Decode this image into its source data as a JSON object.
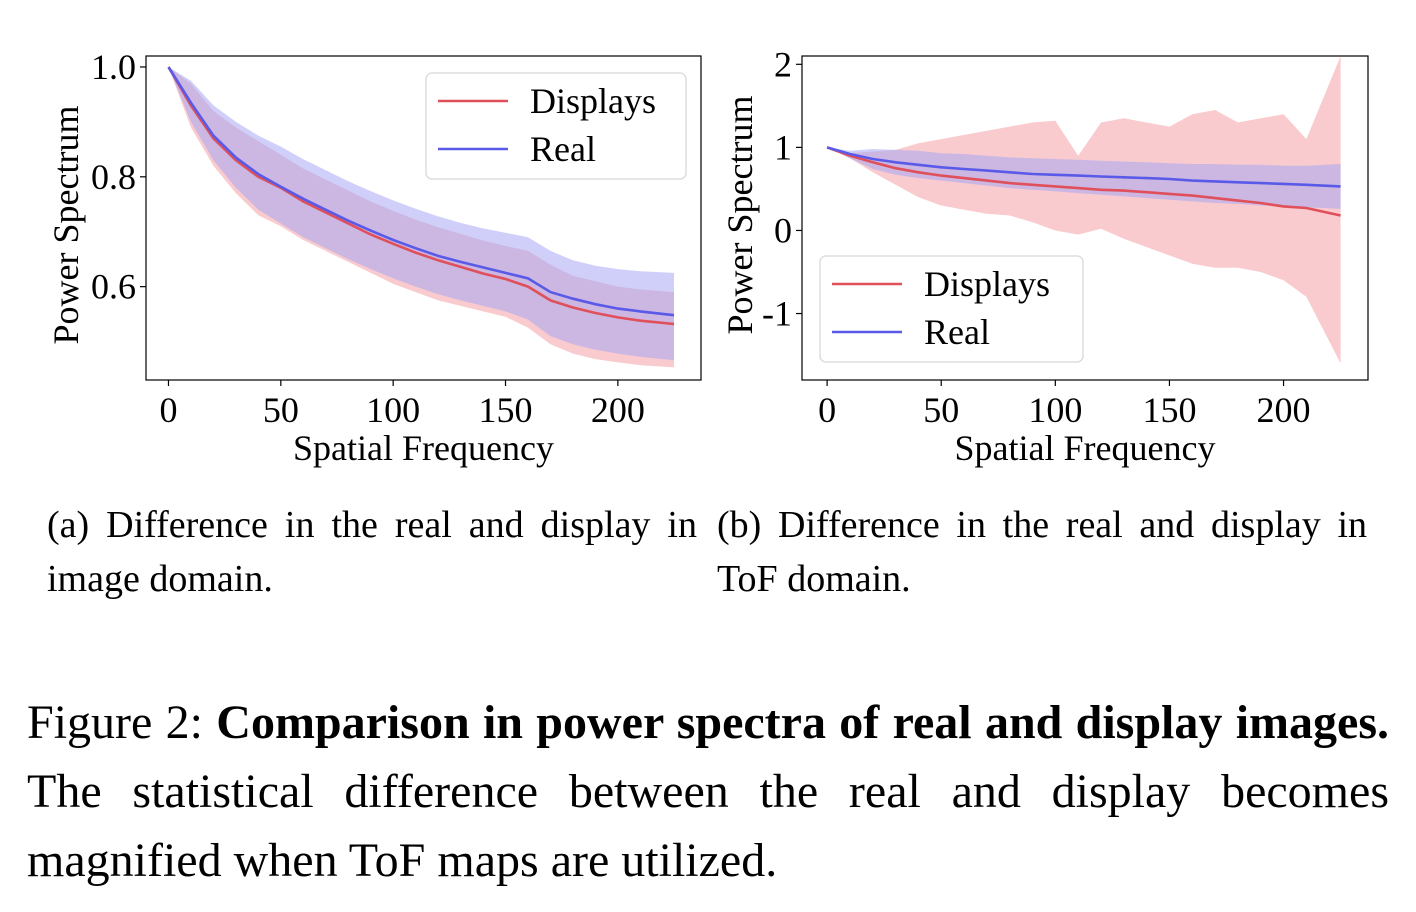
{
  "chart_data": [
    {
      "type": "line",
      "id": "a",
      "xlabel": "Spatial Frequency",
      "ylabel": "Power Spectrum",
      "xlim": [
        -10,
        237
      ],
      "ylim": [
        0.43,
        1.02
      ],
      "xticks": [
        0,
        50,
        100,
        150,
        200
      ],
      "yticks": [
        0.6,
        0.8,
        1.0
      ],
      "ytick_labels": [
        "0.6",
        "0.8",
        "1.0"
      ],
      "grid": false,
      "legend_position": "top-right",
      "x": [
        0,
        10,
        20,
        30,
        40,
        50,
        60,
        70,
        80,
        90,
        100,
        110,
        120,
        130,
        140,
        150,
        160,
        170,
        180,
        190,
        200,
        210,
        225
      ],
      "series": [
        {
          "name": "Displays",
          "color": "#e0505a",
          "band_color": "#f4a0a8",
          "values": [
            1.0,
            0.93,
            0.87,
            0.83,
            0.8,
            0.78,
            0.755,
            0.735,
            0.715,
            0.695,
            0.678,
            0.662,
            0.648,
            0.636,
            0.624,
            0.614,
            0.6,
            0.575,
            0.562,
            0.552,
            0.544,
            0.538,
            0.532
          ],
          "lower": [
            1.0,
            0.89,
            0.82,
            0.77,
            0.73,
            0.71,
            0.685,
            0.665,
            0.645,
            0.625,
            0.605,
            0.59,
            0.575,
            0.565,
            0.555,
            0.545,
            0.525,
            0.495,
            0.478,
            0.468,
            0.462,
            0.457,
            0.453
          ],
          "upper": [
            1.0,
            0.97,
            0.92,
            0.89,
            0.865,
            0.84,
            0.815,
            0.795,
            0.775,
            0.755,
            0.738,
            0.722,
            0.708,
            0.696,
            0.684,
            0.674,
            0.665,
            0.64,
            0.62,
            0.61,
            0.6,
            0.595,
            0.59
          ]
        },
        {
          "name": "Real",
          "color": "#5a5ae8",
          "band_color": "#a8a8f4",
          "values": [
            1.0,
            0.935,
            0.875,
            0.835,
            0.805,
            0.782,
            0.76,
            0.74,
            0.72,
            0.702,
            0.685,
            0.67,
            0.656,
            0.645,
            0.635,
            0.625,
            0.615,
            0.59,
            0.578,
            0.568,
            0.56,
            0.555,
            0.548
          ],
          "lower": [
            1.0,
            0.9,
            0.83,
            0.78,
            0.74,
            0.715,
            0.69,
            0.67,
            0.65,
            0.632,
            0.615,
            0.6,
            0.586,
            0.575,
            0.565,
            0.555,
            0.54,
            0.51,
            0.495,
            0.485,
            0.478,
            0.472,
            0.466
          ],
          "upper": [
            1.0,
            0.975,
            0.93,
            0.9,
            0.875,
            0.855,
            0.832,
            0.812,
            0.792,
            0.774,
            0.757,
            0.742,
            0.728,
            0.716,
            0.706,
            0.698,
            0.69,
            0.665,
            0.648,
            0.638,
            0.632,
            0.628,
            0.625
          ]
        }
      ]
    },
    {
      "type": "line",
      "id": "b",
      "xlabel": "Spatial Frequency",
      "ylabel": "Power Spectrum",
      "xlim": [
        -11,
        237
      ],
      "ylim": [
        -1.8,
        2.1
      ],
      "xticks": [
        0,
        50,
        100,
        150,
        200
      ],
      "yticks": [
        -1,
        0,
        1,
        2
      ],
      "ytick_labels": [
        "-1",
        "0",
        "1",
        "2"
      ],
      "grid": false,
      "legend_position": "bottom-left",
      "x": [
        0,
        10,
        20,
        30,
        40,
        50,
        60,
        70,
        80,
        90,
        100,
        110,
        120,
        130,
        140,
        150,
        160,
        170,
        180,
        190,
        200,
        210,
        225
      ],
      "series": [
        {
          "name": "Displays",
          "color": "#e0505a",
          "band_color": "#f4a0a8",
          "values": [
            1.0,
            0.9,
            0.82,
            0.75,
            0.7,
            0.66,
            0.63,
            0.6,
            0.57,
            0.55,
            0.53,
            0.51,
            0.49,
            0.48,
            0.46,
            0.44,
            0.42,
            0.39,
            0.36,
            0.33,
            0.29,
            0.27,
            0.18
          ],
          "lower": [
            1.0,
            0.87,
            0.7,
            0.55,
            0.4,
            0.3,
            0.25,
            0.2,
            0.18,
            0.1,
            0.0,
            -0.05,
            0.02,
            -0.1,
            -0.2,
            -0.3,
            -0.4,
            -0.45,
            -0.45,
            -0.5,
            -0.6,
            -0.8,
            -1.6
          ],
          "upper": [
            1.0,
            0.93,
            0.95,
            0.97,
            1.05,
            1.1,
            1.15,
            1.2,
            1.25,
            1.3,
            1.32,
            0.9,
            1.3,
            1.35,
            1.3,
            1.25,
            1.4,
            1.45,
            1.3,
            1.35,
            1.4,
            1.1,
            2.1
          ]
        },
        {
          "name": "Real",
          "color": "#5a5ae8",
          "band_color": "#a8a8f4",
          "values": [
            1.0,
            0.92,
            0.86,
            0.82,
            0.79,
            0.76,
            0.74,
            0.72,
            0.7,
            0.68,
            0.67,
            0.66,
            0.65,
            0.64,
            0.63,
            0.62,
            0.6,
            0.59,
            0.58,
            0.57,
            0.56,
            0.55,
            0.53
          ],
          "lower": [
            1.0,
            0.87,
            0.74,
            0.67,
            0.63,
            0.6,
            0.57,
            0.54,
            0.51,
            0.49,
            0.47,
            0.45,
            0.43,
            0.41,
            0.39,
            0.37,
            0.35,
            0.33,
            0.32,
            0.3,
            0.29,
            0.28,
            0.26
          ],
          "upper": [
            1.0,
            0.96,
            0.98,
            0.97,
            0.96,
            0.93,
            0.92,
            0.9,
            0.88,
            0.87,
            0.86,
            0.85,
            0.84,
            0.83,
            0.82,
            0.81,
            0.8,
            0.8,
            0.79,
            0.79,
            0.78,
            0.78,
            0.8
          ]
        }
      ]
    }
  ],
  "captions": {
    "a": "(a) Difference in the real and display in image domain.",
    "b": "(b) Difference in the real and display in ToF domain."
  },
  "figure_caption": {
    "label": "Figure 2:",
    "bold": "Comparison in power spectra of real and display images.",
    "text": "The statistical difference between the real and display becomes magnified when ToF maps are utilized."
  }
}
